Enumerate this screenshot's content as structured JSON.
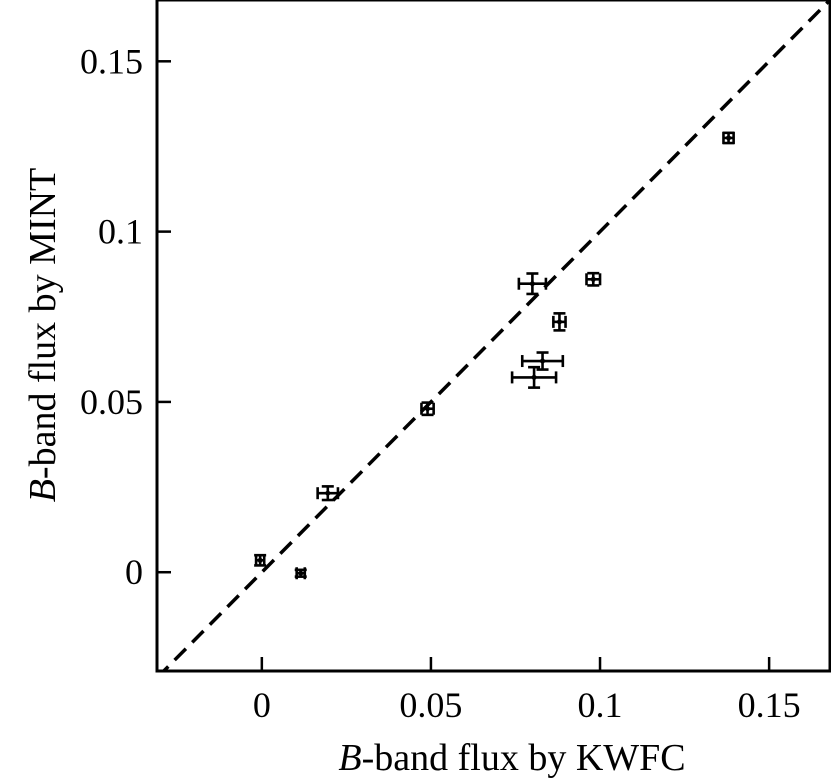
{
  "chart_data": {
    "type": "scatter",
    "title": "",
    "xlabel_italic": "B",
    "xlabel_rest": "-band flux by KWFC",
    "ylabel_italic": "B",
    "ylabel_rest": "-band flux by MINT",
    "xlim": [
      -0.031,
      0.168
    ],
    "ylim": [
      -0.029,
      0.168
    ],
    "grid": false,
    "legend": "none",
    "x_ticks": [
      0,
      0.05,
      0.1,
      0.15
    ],
    "x_tick_labels": [
      "0",
      "0.05",
      "0.1",
      "0.15"
    ],
    "y_ticks": [
      0,
      0.05,
      0.1,
      0.15
    ],
    "y_tick_labels": [
      "0",
      "0.05",
      "0.1",
      "0.15"
    ],
    "reference_line": {
      "style": "dashed",
      "relation": "y = x"
    },
    "points": [
      {
        "x": -0.0005,
        "y": 0.0035,
        "xerr": 0.0012,
        "yerr": 0.0015
      },
      {
        "x": 0.0115,
        "y": -0.0003,
        "xerr": 0.0012,
        "yerr": 0.001
      },
      {
        "x": 0.0195,
        "y": 0.0232,
        "xerr": 0.003,
        "yerr": 0.002
      },
      {
        "x": 0.049,
        "y": 0.048,
        "xerr": 0.0018,
        "yerr": 0.0018
      },
      {
        "x": 0.08,
        "y": 0.0847,
        "xerr": 0.004,
        "yerr": 0.003
      },
      {
        "x": 0.083,
        "y": 0.062,
        "xerr": 0.006,
        "yerr": 0.0025
      },
      {
        "x": 0.0805,
        "y": 0.0572,
        "xerr": 0.0065,
        "yerr": 0.003
      },
      {
        "x": 0.088,
        "y": 0.0735,
        "xerr": 0.0018,
        "yerr": 0.0025
      },
      {
        "x": 0.098,
        "y": 0.086,
        "xerr": 0.002,
        "yerr": 0.0018
      },
      {
        "x": 0.138,
        "y": 0.1275,
        "xerr": 0.0015,
        "yerr": 0.0015
      }
    ]
  }
}
